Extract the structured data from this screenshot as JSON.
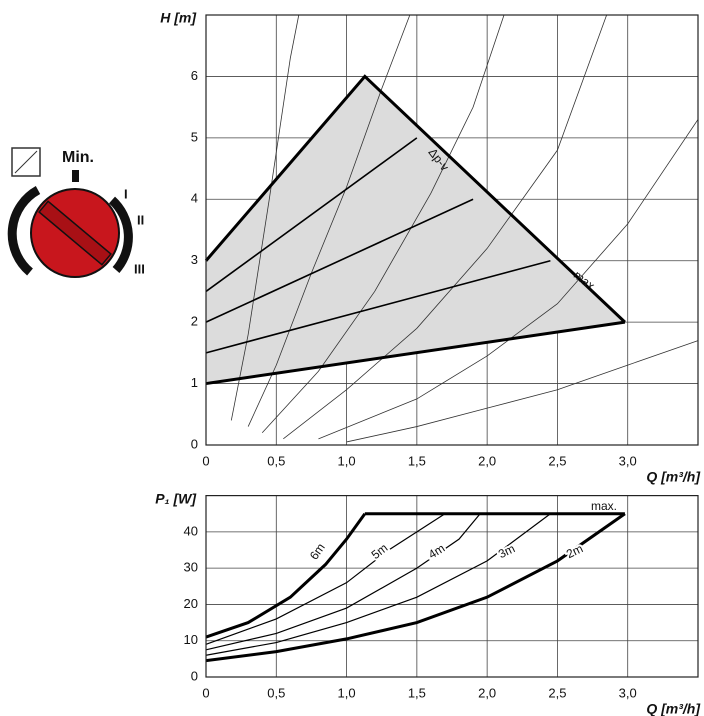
{
  "dial": {
    "labels": [
      "Min.",
      "I",
      "II",
      "III"
    ]
  },
  "chart_data": [
    {
      "type": "line",
      "ylabel": "H [m]",
      "xlabel": "Q [m³/h]",
      "xlim": [
        0,
        3.5
      ],
      "ylim": [
        0,
        7
      ],
      "xticks": [
        0,
        {
          "value": 0.5,
          "label": "0,5"
        },
        {
          "value": 1,
          "label": "1,0"
        },
        {
          "value": 1.5,
          "label": "1,5"
        },
        {
          "value": 2,
          "label": "2,0"
        },
        {
          "value": 2.5,
          "label": "2,5"
        },
        {
          "value": 3,
          "label": "3,0"
        }
      ],
      "yticks": [
        0,
        1,
        2,
        3,
        4,
        5,
        6
      ],
      "grid": true,
      "annotations": [
        "Δp-v",
        "max."
      ],
      "series": [
        {
          "color": "#000000",
          "fill": "#dcdcdc",
          "width": 0,
          "x": [
            0,
            1.13,
            2.98,
            0
          ],
          "values": [
            3,
            6,
            2,
            1
          ]
        },
        {
          "color": "#333333",
          "width": 0.8,
          "x": [
            0.18,
            0.3,
            0.45,
            0.6,
            0.66
          ],
          "values": [
            0.4,
            1.8,
            4,
            6.3,
            7
          ]
        },
        {
          "color": "#333333",
          "width": 0.8,
          "x": [
            0.3,
            0.5,
            0.75,
            1,
            1.25,
            1.45
          ],
          "values": [
            0.3,
            1.3,
            2.8,
            4.2,
            5.8,
            7
          ]
        },
        {
          "color": "#333333",
          "width": 0.8,
          "x": [
            0.4,
            0.8,
            1.2,
            1.6,
            1.9,
            2.12
          ],
          "values": [
            0.2,
            1.2,
            2.5,
            4.1,
            5.5,
            7
          ]
        },
        {
          "color": "#333333",
          "width": 0.8,
          "x": [
            0.55,
            1,
            1.5,
            2,
            2.5,
            2.85
          ],
          "values": [
            0.1,
            0.9,
            1.9,
            3.2,
            4.8,
            7
          ]
        },
        {
          "color": "#333333",
          "width": 0.8,
          "x": [
            0.8,
            1.5,
            2,
            2.5,
            3,
            3.5
          ],
          "values": [
            0.1,
            0.75,
            1.45,
            2.3,
            3.6,
            5.3
          ]
        },
        {
          "color": "#333333",
          "width": 0.8,
          "x": [
            1,
            1.5,
            2,
            2.5,
            3,
            3.5
          ],
          "values": [
            0.05,
            0.3,
            0.6,
            0.9,
            1.3,
            1.7
          ]
        },
        {
          "color": "#000000",
          "width": 1.6,
          "x": [
            0,
            1.5
          ],
          "values": [
            2.5,
            5
          ]
        },
        {
          "color": "#000000",
          "width": 1.6,
          "x": [
            0,
            1.9
          ],
          "values": [
            2,
            4
          ]
        },
        {
          "color": "#000000",
          "width": 1.6,
          "x": [
            0,
            2.45
          ],
          "values": [
            1.5,
            3
          ]
        },
        {
          "color": "#000000",
          "width": 3,
          "x": [
            0,
            1.13,
            2.98
          ],
          "values": [
            3,
            6,
            2
          ]
        },
        {
          "color": "#000000",
          "width": 3,
          "x": [
            0,
            2.98
          ],
          "values": [
            1,
            2
          ]
        }
      ]
    },
    {
      "type": "line",
      "ylabel": "P₁ [W]",
      "xlabel": "Q [m³/h]",
      "xlim": [
        0,
        3.5
      ],
      "ylim": [
        0,
        50
      ],
      "xticks": [
        0,
        {
          "value": 0.5,
          "label": "0,5"
        },
        {
          "value": 1,
          "label": "1,0"
        },
        {
          "value": 1.5,
          "label": "1,5"
        },
        {
          "value": 2,
          "label": "2,0"
        },
        {
          "value": 2.5,
          "label": "2,5"
        },
        {
          "value": 3,
          "label": "3,0"
        }
      ],
      "yticks": [
        0,
        10,
        20,
        30,
        40
      ],
      "grid": true,
      "series": [
        {
          "name": "6m",
          "color": "#000000",
          "width": 3,
          "x": [
            0,
            0.3,
            0.6,
            0.85,
            1,
            1.13
          ],
          "values": [
            11,
            15,
            22,
            31,
            38,
            45
          ]
        },
        {
          "name": "5m",
          "color": "#000000",
          "width": 1.2,
          "x": [
            0,
            0.5,
            1,
            1.3,
            1.5,
            1.7
          ],
          "values": [
            9,
            16,
            26,
            35,
            40,
            45
          ]
        },
        {
          "name": "4m",
          "color": "#000000",
          "width": 1.2,
          "x": [
            0,
            0.5,
            1,
            1.5,
            1.8,
            1.95
          ],
          "values": [
            7.5,
            12,
            19,
            30,
            38,
            45
          ]
        },
        {
          "name": "3m",
          "color": "#000000",
          "width": 1.2,
          "x": [
            0,
            0.5,
            1,
            1.5,
            2,
            2.45
          ],
          "values": [
            6,
            9.5,
            15,
            22,
            32,
            45
          ]
        },
        {
          "name": "2m",
          "color": "#000000",
          "width": 3,
          "x": [
            0,
            0.5,
            1,
            1.5,
            2,
            2.5,
            2.98
          ],
          "values": [
            4.5,
            7,
            10.5,
            15,
            22,
            32,
            45
          ]
        },
        {
          "name": "max.",
          "color": "#000000",
          "width": 3,
          "x": [
            1.13,
            2.98
          ],
          "values": [
            45,
            45
          ]
        }
      ]
    }
  ]
}
